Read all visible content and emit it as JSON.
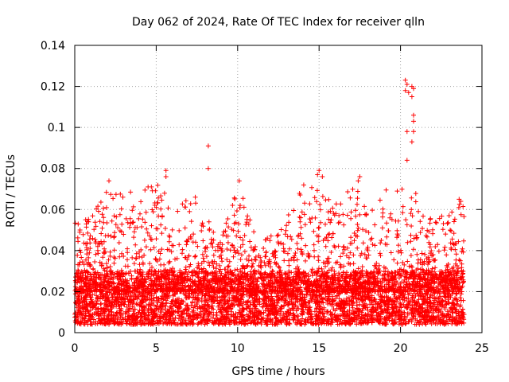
{
  "chart_data": {
    "type": "scatter",
    "title": "Day 062 of 2024, Rate Of TEC Index for receiver qlln",
    "xlabel": "GPS time / hours",
    "ylabel": "ROTI / TECUs",
    "xlim": [
      0,
      25
    ],
    "ylim": [
      0,
      0.14
    ],
    "xticks": [
      0,
      5,
      10,
      15,
      20,
      25
    ],
    "xtick_labels": [
      "0",
      "5",
      "10",
      "15",
      "20",
      "25"
    ],
    "yticks": [
      0,
      0.02,
      0.04,
      0.06,
      0.08,
      0.1,
      0.12,
      0.14
    ],
    "ytick_labels": [
      "0",
      "0.02",
      "0.04",
      "0.06",
      "0.08",
      "0.1",
      "0.12",
      "0.14"
    ],
    "grid": true,
    "marker": "+",
    "series": [
      {
        "name": "ROTI",
        "color": "#ff0000",
        "dense_band": {
          "x_range": [
            0,
            23.9
          ],
          "y_range": [
            0.004,
            0.03
          ]
        },
        "envelope_hour": [
          0,
          1,
          2,
          3,
          4,
          5,
          6,
          7,
          8,
          9,
          10,
          11,
          12,
          13,
          14,
          15,
          16,
          17,
          18,
          19,
          20,
          21,
          22,
          23,
          23.9
        ],
        "envelope_max": [
          0.054,
          0.057,
          0.073,
          0.067,
          0.071,
          0.079,
          0.062,
          0.066,
          0.061,
          0.045,
          0.074,
          0.05,
          0.047,
          0.056,
          0.073,
          0.079,
          0.062,
          0.076,
          0.058,
          0.074,
          0.123,
          0.065,
          0.056,
          0.058,
          0.065
        ],
        "outliers": [
          {
            "x": 8.2,
            "y": 0.091
          },
          {
            "x": 8.2,
            "y": 0.08
          },
          {
            "x": 10.1,
            "y": 0.074
          },
          {
            "x": 5.6,
            "y": 0.079
          },
          {
            "x": 5.6,
            "y": 0.076
          },
          {
            "x": 7.4,
            "y": 0.066
          },
          {
            "x": 2.1,
            "y": 0.074
          },
          {
            "x": 4.5,
            "y": 0.071
          },
          {
            "x": 4.7,
            "y": 0.071
          },
          {
            "x": 15.0,
            "y": 0.079
          },
          {
            "x": 14.9,
            "y": 0.077
          },
          {
            "x": 15.2,
            "y": 0.076
          },
          {
            "x": 17.5,
            "y": 0.076
          },
          {
            "x": 17.4,
            "y": 0.074
          },
          {
            "x": 19.8,
            "y": 0.069
          },
          {
            "x": 20.3,
            "y": 0.123
          },
          {
            "x": 20.4,
            "y": 0.121
          },
          {
            "x": 20.3,
            "y": 0.118
          },
          {
            "x": 20.5,
            "y": 0.117
          },
          {
            "x": 20.7,
            "y": 0.12
          },
          {
            "x": 20.8,
            "y": 0.119
          },
          {
            "x": 20.7,
            "y": 0.115
          },
          {
            "x": 20.8,
            "y": 0.106
          },
          {
            "x": 20.8,
            "y": 0.103
          },
          {
            "x": 20.8,
            "y": 0.098
          },
          {
            "x": 20.4,
            "y": 0.098
          },
          {
            "x": 20.7,
            "y": 0.093
          },
          {
            "x": 20.4,
            "y": 0.084
          },
          {
            "x": 23.6,
            "y": 0.065
          },
          {
            "x": 23.7,
            "y": 0.064
          }
        ]
      }
    ]
  }
}
